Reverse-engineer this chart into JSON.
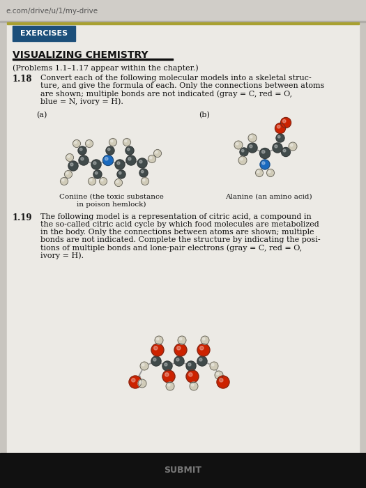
{
  "outer_bg": "#c8c5bf",
  "page_bg": "#e9e6e1",
  "content_bg": "#eceae5",
  "url_text": "e.com/drive/u/1/my-drive",
  "exercises_label": "EXERCISES",
  "exercises_bg": "#1c4f7a",
  "exercises_text_color": "#ffffff",
  "section_title": "VISUALIZING CHEMISTRY",
  "problems_note": "(Problems 1.1–1.17 appear within the chapter.)",
  "prob118_num": "1.18",
  "prob118_lines": [
    "Convert each of the following molecular models into a skeletal struc-",
    "ture, and give the formula of each. Only the connections between atoms",
    "are shown; multiple bonds are not indicated (gray = C, red = O,",
    "blue = N, ivory = H)."
  ],
  "label_a": "(a)",
  "label_b": "(b)",
  "caption_a_lines": [
    "Coniine (the toxic substance",
    "in poison hemlock)"
  ],
  "caption_b": "Alanine (an amino acid)",
  "prob119_num": "1.19",
  "prob119_lines": [
    "The following model is a representation of citric acid, a compound in",
    "the so-called citric acid cycle by which food molecules are metabolized",
    "in the body. Only the connections between atoms are shown; multiple",
    "bonds are not indicated. Complete the structure by indicating the posi-",
    "tions of multiple bonds and lone-pair electrons (gray = C, red = O,",
    "ivory = H)."
  ],
  "bottom_bar_color": "#111111",
  "bottom_text": "SUBMIT",
  "gold_line_color": "#a8a030",
  "text_color": "#111111",
  "gray_atom": "#8a9a9a",
  "red_atom": "#cc2200",
  "blue_atom": "#1a6abf",
  "ivory_atom": "#d0cbb8",
  "dark_atom": "#404a4a",
  "bond_color": "#999999"
}
